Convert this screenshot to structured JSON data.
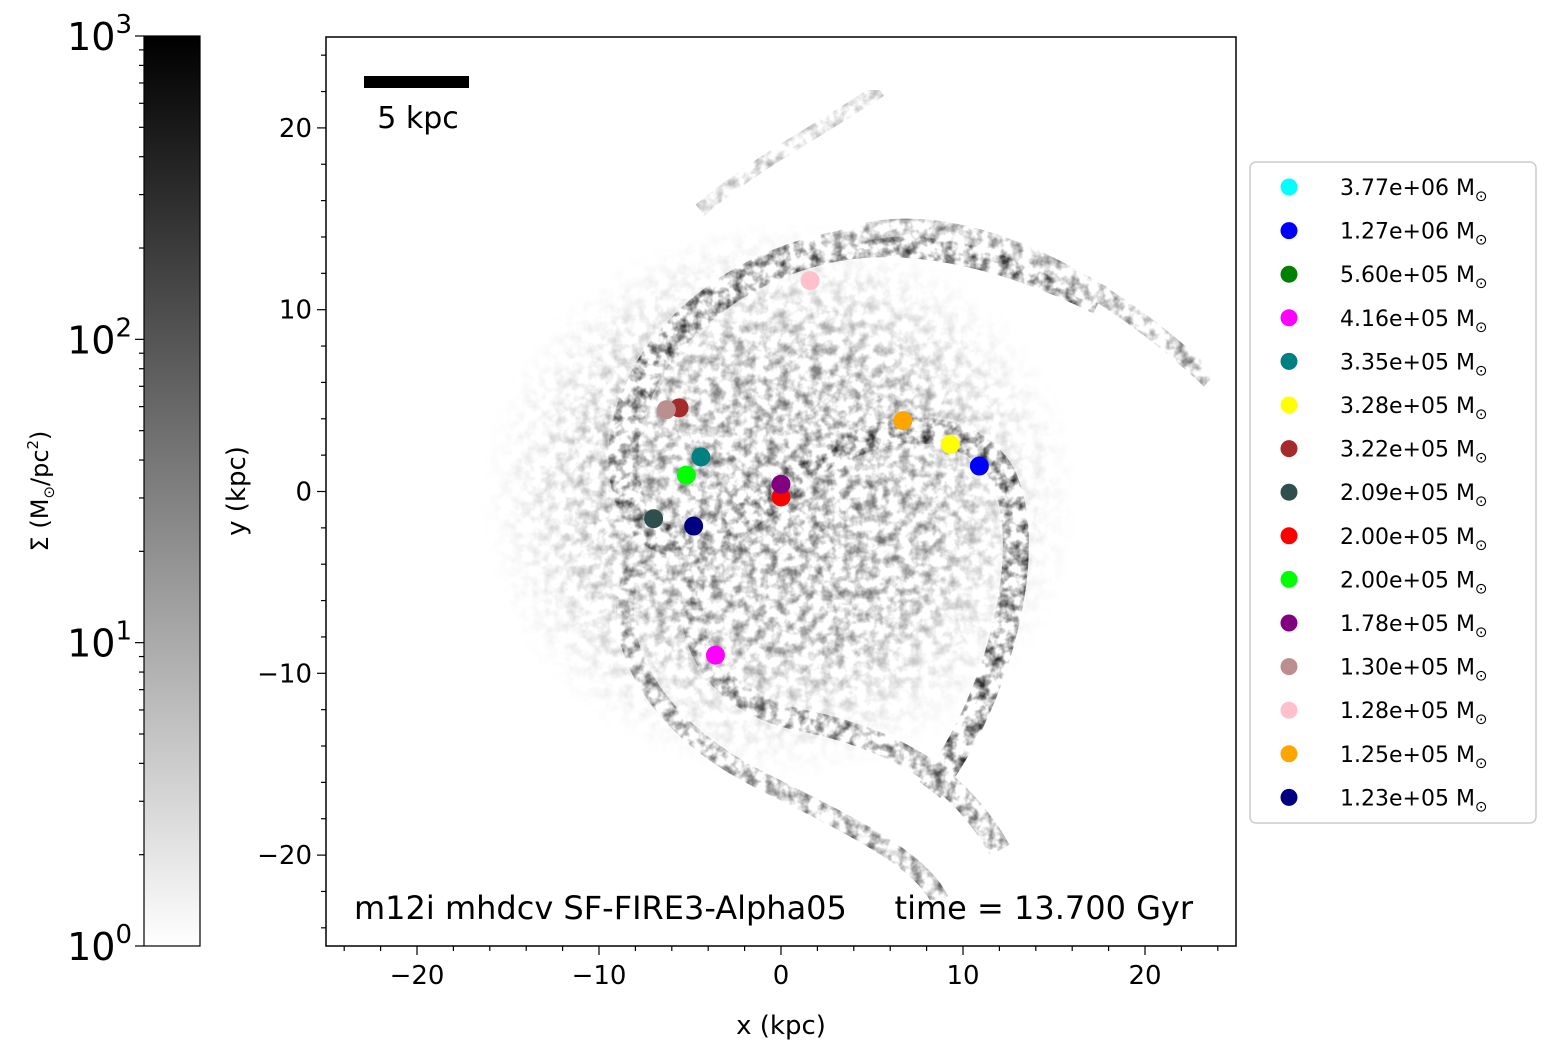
{
  "chart_data": {
    "type": "scatter",
    "panel": "surface density map",
    "xlabel": "x (kpc)",
    "ylabel": "y (kpc)",
    "xlim": [
      -25,
      25
    ],
    "ylim": [
      -25,
      25
    ],
    "xticks": [
      -20,
      -10,
      0,
      10,
      20
    ],
    "yticks": [
      -20,
      -10,
      0,
      10,
      20
    ],
    "xtick_labels": [
      "−20",
      "−10",
      "0",
      "10",
      "20"
    ],
    "ytick_labels": [
      "−20",
      "−10",
      "0",
      "10",
      "20"
    ],
    "scale_bar": {
      "length_kpc": 5,
      "label": "5 kpc"
    },
    "annotation_left": "m12i mhdcv SF-FIRE3-Alpha05",
    "annotation_right": "time = 13.700 Gyr",
    "colorbar": {
      "label_prefix": "Σ (M",
      "label_sun": "⊙",
      "label_mid": "/pc",
      "label_sup": "2",
      "label_suffix": ")",
      "scale": "log",
      "range": [
        1,
        1000
      ],
      "colormap": "gray_r",
      "major_ticks": [
        1,
        10,
        100,
        1000
      ],
      "tick_labels": [
        {
          "base": "10",
          "exp": "0"
        },
        {
          "base": "10",
          "exp": "1"
        },
        {
          "base": "10",
          "exp": "2"
        },
        {
          "base": "10",
          "exp": "3"
        }
      ]
    },
    "legend_position": "right",
    "series": [
      {
        "name": "3.77e+06",
        "unit": "M⊙",
        "color": "#00ffff",
        "x": null,
        "y": null
      },
      {
        "name": "1.27e+06",
        "unit": "M⊙",
        "color": "#0000ff",
        "x": 10.9,
        "y": 1.4
      },
      {
        "name": "5.60e+05",
        "unit": "M⊙",
        "color": "#008000",
        "x": null,
        "y": null
      },
      {
        "name": "4.16e+05",
        "unit": "M⊙",
        "color": "#ff00ff",
        "x": -3.6,
        "y": -9.0
      },
      {
        "name": "3.35e+05",
        "unit": "M⊙",
        "color": "#008080",
        "x": -4.4,
        "y": 1.9
      },
      {
        "name": "3.28e+05",
        "unit": "M⊙",
        "color": "#ffff00",
        "x": 9.3,
        "y": 2.6
      },
      {
        "name": "3.22e+05",
        "unit": "M⊙",
        "color": "#a52a2a",
        "x": -5.6,
        "y": 4.6
      },
      {
        "name": "2.09e+05",
        "unit": "M⊙",
        "color": "#2f4f4f",
        "x": -7.0,
        "y": -1.5
      },
      {
        "name": "2.00e+05",
        "unit": "M⊙",
        "color": "#ff0000",
        "x": 0.0,
        "y": -0.3
      },
      {
        "name": "2.00e+05",
        "unit": "M⊙",
        "color": "#00ff00",
        "x": -5.2,
        "y": 0.9
      },
      {
        "name": "1.78e+05",
        "unit": "M⊙",
        "color": "#800080",
        "x": 0.0,
        "y": 0.4
      },
      {
        "name": "1.30e+05",
        "unit": "M⊙",
        "color": "#bc8f8f",
        "x": -6.3,
        "y": 4.5
      },
      {
        "name": "1.28e+05",
        "unit": "M⊙",
        "color": "#ffc0cb",
        "x": 1.6,
        "y": 11.6
      },
      {
        "name": "1.25e+05",
        "unit": "M⊙",
        "color": "#ffa500",
        "x": 6.7,
        "y": 3.9
      },
      {
        "name": "1.23e+05",
        "unit": "M⊙",
        "color": "#000080",
        "x": -4.8,
        "y": -1.9
      }
    ]
  }
}
